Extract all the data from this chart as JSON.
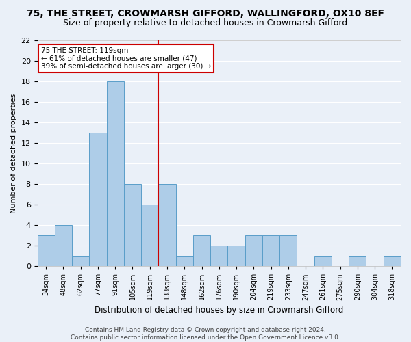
{
  "title1": "75, THE STREET, CROWMARSH GIFFORD, WALLINGFORD, OX10 8EF",
  "title2": "Size of property relative to detached houses in Crowmarsh Gifford",
  "xlabel": "Distribution of detached houses by size in Crowmarsh Gifford",
  "ylabel": "Number of detached properties",
  "categories": [
    "34sqm",
    "48sqm",
    "62sqm",
    "77sqm",
    "91sqm",
    "105sqm",
    "119sqm",
    "133sqm",
    "148sqm",
    "162sqm",
    "176sqm",
    "190sqm",
    "204sqm",
    "219sqm",
    "233sqm",
    "247sqm",
    "261sqm",
    "275sqm",
    "290sqm",
    "304sqm",
    "318sqm"
  ],
  "values": [
    3,
    4,
    1,
    13,
    18,
    8,
    6,
    8,
    1,
    3,
    2,
    2,
    3,
    3,
    3,
    0,
    1,
    0,
    1,
    0,
    1
  ],
  "highlight_index": 6,
  "bar_color": "#aecde8",
  "bar_edge_color": "#5a9ec9",
  "highlight_line_color": "#cc0000",
  "annotation_text": "75 THE STREET: 119sqm\n← 61% of detached houses are smaller (47)\n39% of semi-detached houses are larger (30) →",
  "ylim": [
    0,
    22
  ],
  "yticks": [
    0,
    2,
    4,
    6,
    8,
    10,
    12,
    14,
    16,
    18,
    20,
    22
  ],
  "footer1": "Contains HM Land Registry data © Crown copyright and database right 2024.",
  "footer2": "Contains public sector information licensed under the Open Government Licence v3.0.",
  "bg_color": "#eaf0f8",
  "grid_color": "#ffffff",
  "title1_fontsize": 10,
  "title2_fontsize": 9,
  "annotation_box_color": "#ffffff",
  "annotation_box_edgecolor": "#cc0000",
  "footer_fontsize": 6.5,
  "ylabel_fontsize": 8,
  "xlabel_fontsize": 8.5
}
